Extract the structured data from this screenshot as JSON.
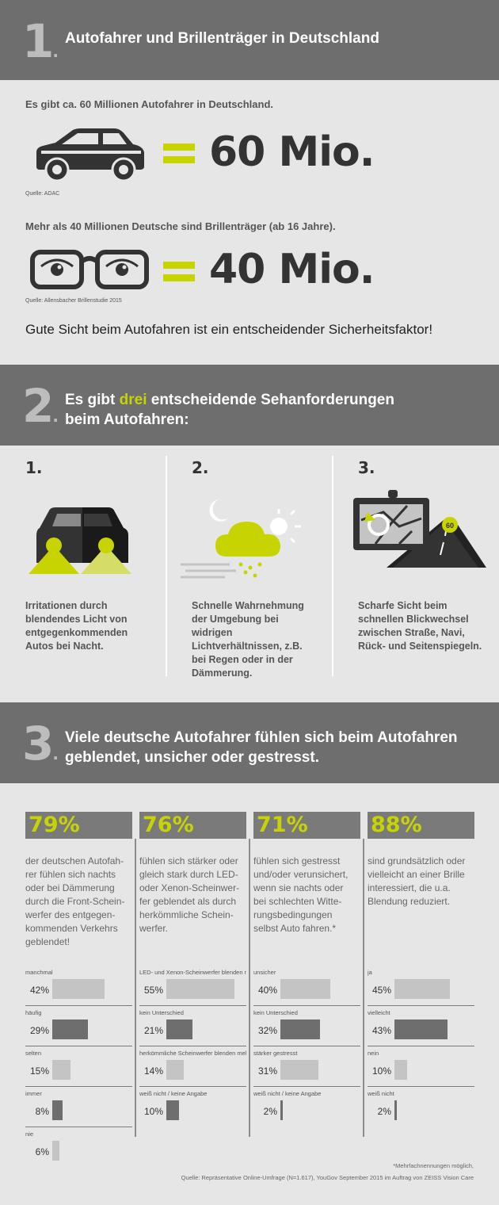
{
  "section1": {
    "number": "1",
    "title": "Autofahrer und Brillenträger in Deutschland",
    "car_text": "Es gibt ca. 60 Millionen Autofahrer in Deutschland.",
    "car_value": "60 Mio.",
    "car_source": "Quelle: ADAC",
    "glasses_text": "Mehr als 40 Millionen Deutsche sind Brillenträger (ab 16 Jahre).",
    "glasses_value": "40 Mio.",
    "glasses_source": "Quelle: Allensbacher Brillenstudie 2015",
    "statement": "Gute Sicht beim Autofahren ist ein entscheidender Sicherheitsfaktor!"
  },
  "section2": {
    "number": "2",
    "title_pre": "Es gibt ",
    "title_highlight": "drei",
    "title_post": " entscheidende Sehanforderungen",
    "title_line2": "beim Autofahren:",
    "challenges": [
      {
        "num": "1.",
        "text": "Irritationen durch blendendes Licht von entgegenkommenden Autos bei Nacht.",
        "icon": "car-headlights-icon"
      },
      {
        "num": "2.",
        "text": "Schnelle Wahrnehmung der Umgebung bei widrigen Lichtverhältnissen, z.B. bei Regen oder in der Dämmerung.",
        "icon": "weather-icon"
      },
      {
        "num": "3.",
        "text": "Scharfe Sicht beim schnellen Blickwechsel zwischen Straße, Navi, Rück- und Seitenspiegeln.",
        "icon": "navigation-road-icon"
      }
    ],
    "speed_sign": "60"
  },
  "section3": {
    "number": "3",
    "title_line1": "Viele deutsche Autofahrer fühlen sich beim Autofahren",
    "title_line2": "geblendet, unsicher oder gestresst.",
    "stats": [
      {
        "pct": "79%",
        "desc": "der deutschen Autofah- rer fühlen sich nachts oder bei Dämmerung durch die Front-Schein- werfer des entgegen- kommenden Verkehrs geblendet!",
        "bars": [
          {
            "label": "manchmal",
            "value": "42%",
            "v": 42,
            "tone": "light"
          },
          {
            "label": "häufig",
            "value": "29%",
            "v": 29,
            "tone": "dark"
          },
          {
            "label": "selten",
            "value": "15%",
            "v": 15,
            "tone": "light"
          },
          {
            "label": "immer",
            "value": "8%",
            "v": 8,
            "tone": "dark"
          },
          {
            "label": "nie",
            "value": "6%",
            "v": 6,
            "tone": "light"
          }
        ]
      },
      {
        "pct": "76%",
        "desc": "fühlen sich stärker oder gleich stark durch LED- oder Xenon-Scheinwer- fer geblendet als durch herkömmliche Schein- werfer.",
        "bars": [
          {
            "label": "LED- und Xenon-Scheinwerfer blenden mehr",
            "value": "55%",
            "v": 55,
            "tone": "light"
          },
          {
            "label": "kein Unterschied",
            "value": "21%",
            "v": 21,
            "tone": "dark"
          },
          {
            "label": "herkömmliche Scheinwerfer blenden mehr",
            "value": "14%",
            "v": 14,
            "tone": "light"
          },
          {
            "label": "weiß nicht / keine Angabe",
            "value": "10%",
            "v": 10,
            "tone": "dark"
          }
        ]
      },
      {
        "pct": "71%",
        "desc": "fühlen sich gestresst und/oder verunsichert, wenn sie nachts oder bei schlechten Witte- rungsbedingungen selbst Auto fahren.*",
        "bars": [
          {
            "label": "unsicher",
            "value": "40%",
            "v": 40,
            "tone": "light"
          },
          {
            "label": "kein Unterschied",
            "value": "32%",
            "v": 32,
            "tone": "dark"
          },
          {
            "label": "stärker gestresst",
            "value": "31%",
            "v": 31,
            "tone": "light"
          },
          {
            "label": "weiß nicht / keine Angabe",
            "value": "2%",
            "v": 2,
            "tone": "dark"
          }
        ]
      },
      {
        "pct": "88%",
        "desc": "sind grundsätzlich oder vielleicht an einer Brille interessiert, die u.a. Blendung reduziert.",
        "bars": [
          {
            "label": "ja",
            "value": "45%",
            "v": 45,
            "tone": "light"
          },
          {
            "label": "vielleicht",
            "value": "43%",
            "v": 43,
            "tone": "dark"
          },
          {
            "label": "nein",
            "value": "10%",
            "v": 10,
            "tone": "light"
          },
          {
            "label": "weiß nicht",
            "value": "2%",
            "v": 2,
            "tone": "dark"
          }
        ]
      }
    ],
    "footnote": "*Mehrfachnennungen möglich,",
    "source": "Quelle: Repräsentative Online-Umfrage (N=1.617), YouGov September 2015 im Auftrag von ZEISS Vision Care"
  },
  "colors": {
    "band": "#6e6e6e",
    "accent": "#c8d400",
    "background": "#e6e6e6"
  }
}
